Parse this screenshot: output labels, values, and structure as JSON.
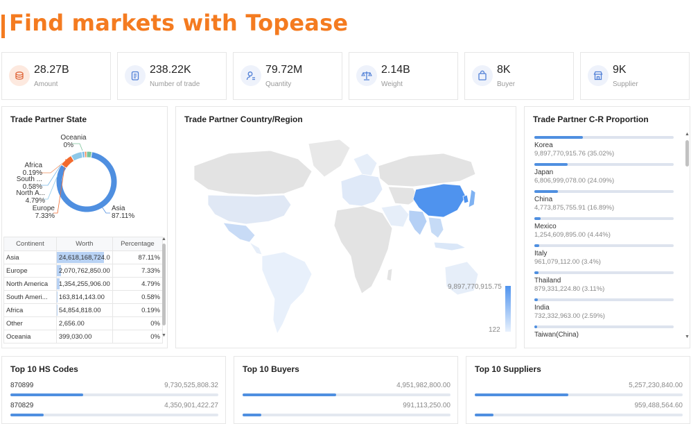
{
  "header": {
    "title": "Find markets with Topease"
  },
  "stats": [
    {
      "value": "28.27B",
      "label": "Amount",
      "icon": "coins-icon"
    },
    {
      "value": "238.22K",
      "label": "Number of trade",
      "icon": "clipboard-icon"
    },
    {
      "value": "79.72M",
      "label": "Quantity",
      "icon": "user-quantity-icon"
    },
    {
      "value": "2.14B",
      "label": "Weight",
      "icon": "scale-icon"
    },
    {
      "value": "8K",
      "label": "Buyer",
      "icon": "shopping-bag-icon"
    },
    {
      "value": "9K",
      "label": "Supplier",
      "icon": "store-icon"
    }
  ],
  "state_panel": {
    "title": "Trade Partner State",
    "donut": [
      {
        "name": "Oceania",
        "pct": "0%",
        "value": 0.0,
        "color": "#7cc49a"
      },
      {
        "name": "Africa",
        "pct": "0.19%",
        "value": 0.19,
        "color": "#f08c5a"
      },
      {
        "name": "South ...",
        "pct": "0.58%",
        "value": 0.58,
        "color": "#78b8e8"
      },
      {
        "name": "North A...",
        "pct": "4.79%",
        "value": 4.79,
        "color": "#8ec8e8"
      },
      {
        "name": "Europe",
        "pct": "7.33%",
        "value": 7.33,
        "color": "#f26a2e"
      },
      {
        "name": "Asia",
        "pct": "87.11%",
        "value": 87.11,
        "color": "#4f8fe0"
      }
    ],
    "table": {
      "headers": [
        "Continent",
        "Worth",
        "Percentage"
      ],
      "rows": [
        {
          "continent": "Asia",
          "worth": "24,618,168,724.0",
          "pct": "87.11%",
          "share": 0.8711
        },
        {
          "continent": "Europe",
          "worth": "2,070,762,850.00",
          "pct": "7.33%",
          "share": 0.0733
        },
        {
          "continent": "North America",
          "worth": "1,354,255,906.00",
          "pct": "4.79%",
          "share": 0.0479
        },
        {
          "continent": "South Ameri...",
          "worth": "163,814,143.00",
          "pct": "0.58%",
          "share": 0.0058
        },
        {
          "continent": "Africa",
          "worth": "54,854,818.00",
          "pct": "0.19%",
          "share": 0.0019
        },
        {
          "continent": "Other",
          "worth": "2,656.00",
          "pct": "0%",
          "share": 0
        },
        {
          "continent": "Oceania",
          "worth": "399,030.00",
          "pct": "0%",
          "share": 0
        }
      ]
    }
  },
  "map_panel": {
    "title": "Trade Partner Country/Region",
    "legend_max": "9,897,770,915.75",
    "legend_min": "122"
  },
  "proportion_panel": {
    "title": "Trade Partner C-R Proportion",
    "items": [
      {
        "name": "Korea",
        "value": "9,897,770,915.76 (35.02%)",
        "share": 0.3502
      },
      {
        "name": "Japan",
        "value": "6,806,999,078.00 (24.09%)",
        "share": 0.2409
      },
      {
        "name": "China",
        "value": "4,773,875,755.91 (16.89%)",
        "share": 0.1689
      },
      {
        "name": "Mexico",
        "value": "1,254,609,895.00 (4.44%)",
        "share": 0.0444
      },
      {
        "name": "Italy",
        "value": "961,079,112.00 (3.4%)",
        "share": 0.034
      },
      {
        "name": "Thailand",
        "value": "879,331,224.80 (3.11%)",
        "share": 0.0311
      },
      {
        "name": "India",
        "value": "732,332,963.00 (2.59%)",
        "share": 0.0259
      },
      {
        "name": "Taiwan(China)",
        "value": "",
        "share": 0.02
      }
    ]
  },
  "top_hs": {
    "title": "Top 10 HS Codes",
    "rows": [
      {
        "code": "870899",
        "value": "9,730,525,808.32",
        "share": 0.35
      },
      {
        "code": "870829",
        "value": "4,350,901,422.27",
        "share": 0.16
      }
    ]
  },
  "top_buyers": {
    "title": "Top 10 Buyers",
    "rows": [
      {
        "code": "",
        "value": "4,951,982,800.00",
        "share": 0.45
      },
      {
        "code": "",
        "value": "991,113,250.00",
        "share": 0.09
      }
    ]
  },
  "top_suppliers": {
    "title": "Top 10 Suppliers",
    "rows": [
      {
        "code": "",
        "value": "5,257,230,840.00",
        "share": 0.45
      },
      {
        "code": "",
        "value": "959,488,564.60",
        "share": 0.09
      }
    ]
  }
}
